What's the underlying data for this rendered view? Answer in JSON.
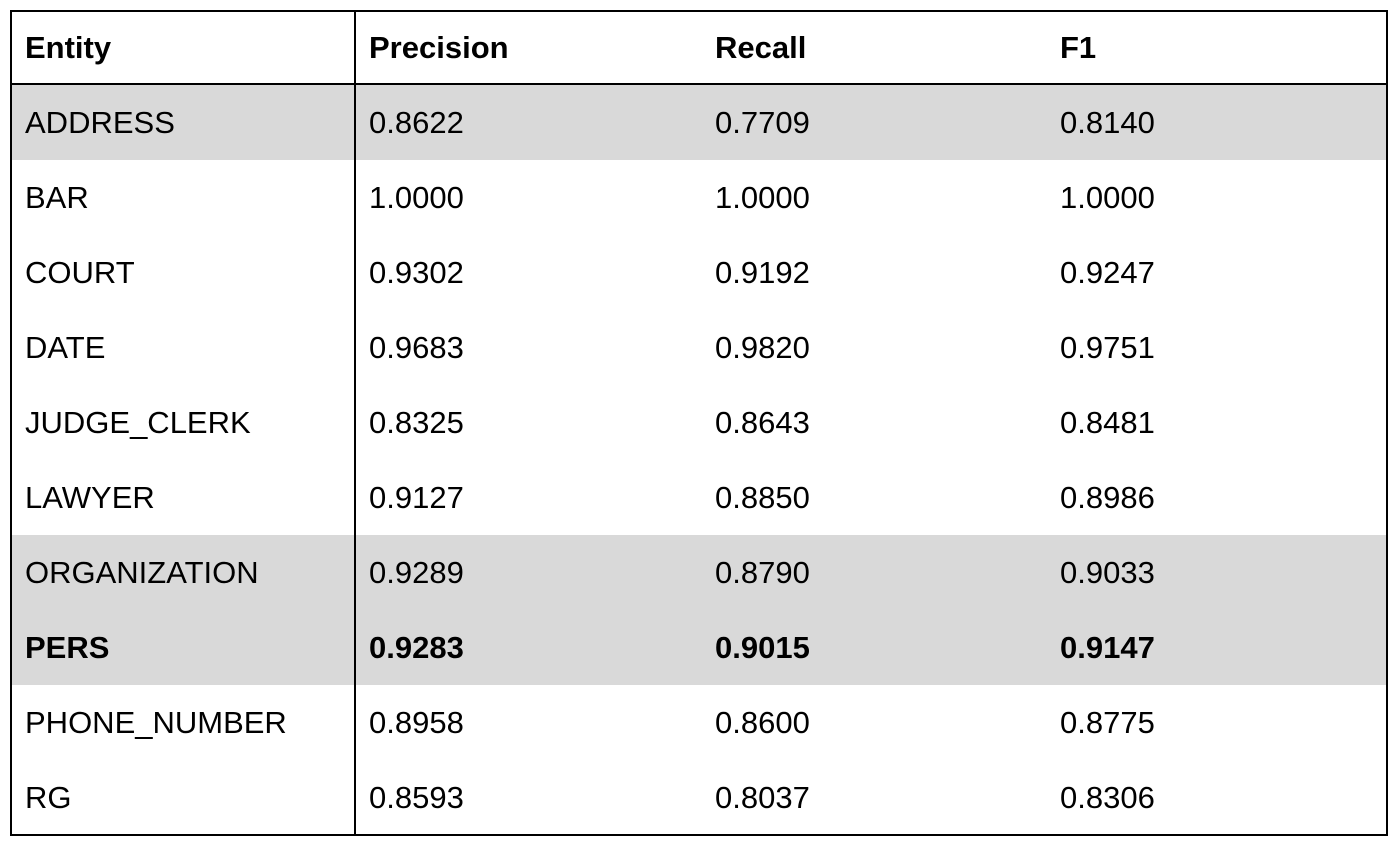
{
  "chart_data": {
    "type": "table",
    "columns": [
      "Entity",
      "Precision",
      "Recall",
      "F1"
    ],
    "rows": [
      {
        "entity": "ADDRESS",
        "precision": "0.8622",
        "recall": "0.7709",
        "f1": "0.8140",
        "shaded": true,
        "bold": false
      },
      {
        "entity": "BAR",
        "precision": "1.0000",
        "recall": "1.0000",
        "f1": "1.0000",
        "shaded": false,
        "bold": false
      },
      {
        "entity": "COURT",
        "precision": "0.9302",
        "recall": "0.9192",
        "f1": "0.9247",
        "shaded": false,
        "bold": false
      },
      {
        "entity": "DATE",
        "precision": "0.9683",
        "recall": "0.9820",
        "f1": "0.9751",
        "shaded": false,
        "bold": false
      },
      {
        "entity": "JUDGE_CLERK",
        "precision": "0.8325",
        "recall": "0.8643",
        "f1": "0.8481",
        "shaded": false,
        "bold": false
      },
      {
        "entity": "LAWYER",
        "precision": "0.9127",
        "recall": "0.8850",
        "f1": "0.8986",
        "shaded": false,
        "bold": false
      },
      {
        "entity": "ORGANIZATION",
        "precision": "0.9289",
        "recall": "0.8790",
        "f1": "0.9033",
        "shaded": true,
        "bold": false
      },
      {
        "entity": "PERS",
        "precision": "0.9283",
        "recall": "0.9015",
        "f1": "0.9147",
        "shaded": true,
        "bold": true
      },
      {
        "entity": "PHONE_NUMBER",
        "precision": "0.8958",
        "recall": "0.8600",
        "f1": "0.8775",
        "shaded": false,
        "bold": false
      },
      {
        "entity": "RG",
        "precision": "0.8593",
        "recall": "0.8037",
        "f1": "0.8306",
        "shaded": false,
        "bold": false
      }
    ],
    "shade_color": "#d9d9d9"
  }
}
